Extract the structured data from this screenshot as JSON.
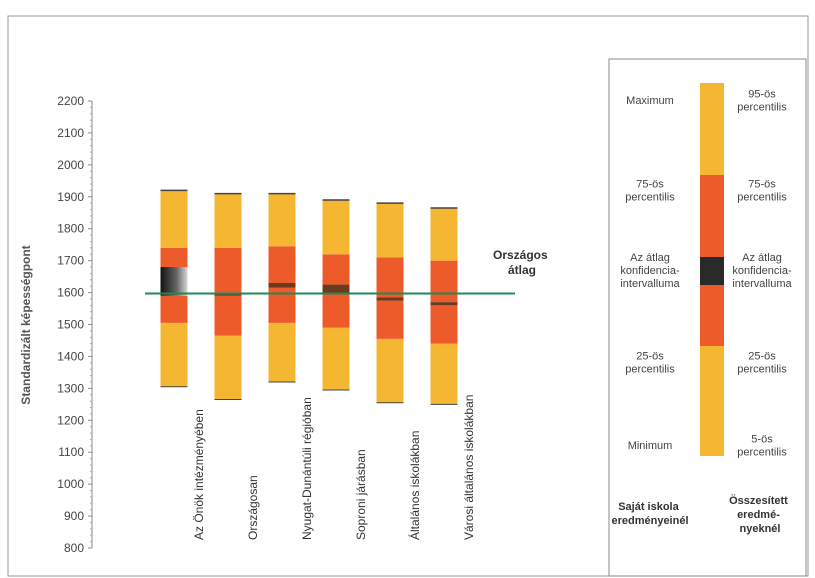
{
  "chart_data": {
    "type": "box",
    "ylabel": "Standardizált képességpont",
    "ylim": [
      800,
      2200
    ],
    "yticks": [
      800,
      900,
      1000,
      1100,
      1200,
      1300,
      1400,
      1500,
      1600,
      1700,
      1800,
      1900,
      2000,
      2100,
      2200
    ],
    "grid": false,
    "national_average": 1597,
    "national_average_label": "Országos átlag",
    "categories": [
      "Az Önök intézményében",
      "Országosan",
      "Nyugat-Dunántúli régióban",
      "Soproni járásban",
      "Általános iskolákban",
      "Városi általános iskolákban"
    ],
    "boxes": [
      {
        "p5": 1305,
        "p25": 1505,
        "mean_lo": 1590,
        "mean_hi": 1680,
        "p75": 1740,
        "p95": 1920
      },
      {
        "p5": 1265,
        "p25": 1465,
        "mean_lo": 1594,
        "mean_hi": 1600,
        "p75": 1740,
        "p95": 1910
      },
      {
        "p5": 1320,
        "p25": 1505,
        "mean_lo": 1615,
        "mean_hi": 1630,
        "p75": 1745,
        "p95": 1910
      },
      {
        "p5": 1295,
        "p25": 1490,
        "mean_lo": 1600,
        "mean_hi": 1625,
        "p75": 1720,
        "p95": 1890
      },
      {
        "p5": 1255,
        "p25": 1455,
        "mean_lo": 1575,
        "mean_hi": 1585,
        "p75": 1710,
        "p95": 1880
      },
      {
        "p5": 1250,
        "p25": 1440,
        "mean_lo": 1560,
        "mean_hi": 1570,
        "p75": 1700,
        "p95": 1865
      }
    ],
    "colors": {
      "outer": "#f5b731",
      "inner": "#ee5b2b",
      "ci": "#2a2a2a",
      "average_line": "#1e8a55"
    }
  },
  "legend": {
    "left_labels": [
      "Maximum",
      "75-ös percentilis",
      "Az átlag konfidencia-intervalluma",
      "25-ös percentilis",
      "Minimum"
    ],
    "right_labels": [
      "95-ös percentilis",
      "75-ös percentilis",
      "Az átlag konfidencia-intervalluma",
      "25-ös percentilis",
      "5-ös percentilis"
    ],
    "left_caption": "Saját iskola eredményeinél",
    "right_caption": "Összesített eredményeknél"
  }
}
